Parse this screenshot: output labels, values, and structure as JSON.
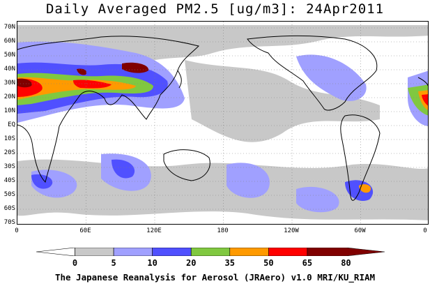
{
  "title": "Daily Averaged PM2.5 [ug/m3]: 24Apr2011",
  "footer": "The Japanese Reanalysis for Aerosol (JRAero) v1.0 MRI/KU_RIAM",
  "lat_labels": [
    "70N",
    "60N",
    "50N",
    "40N",
    "30N",
    "20N",
    "10N",
    "EQ",
    "10S",
    "20S",
    "30S",
    "40S",
    "50S",
    "60S",
    "70S"
  ],
  "lon_labels": [
    "0",
    "60E",
    "120E",
    "180",
    "120W",
    "60W",
    "0"
  ],
  "colorbar": {
    "thresholds": [
      "0",
      "5",
      "10",
      "20",
      "35",
      "50",
      "65",
      "80"
    ],
    "colors": [
      "#ffffff",
      "#c8c8c8",
      "#a0a0ff",
      "#5050ff",
      "#80c840",
      "#ff9a00",
      "#ff0000",
      "#800000"
    ]
  },
  "map_colors": {
    "ocean": "#ffffff",
    "coast": "#000000",
    "grid": "#808080"
  }
}
